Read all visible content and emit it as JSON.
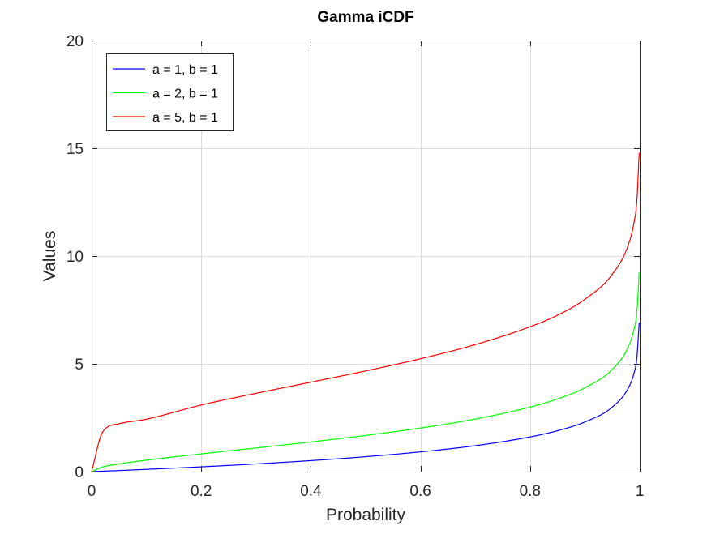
{
  "chart_data": {
    "type": "line",
    "title": "Gamma iCDF",
    "xlabel": "Probability",
    "ylabel": "Values",
    "xlim": [
      0,
      1
    ],
    "ylim": [
      0,
      20
    ],
    "x_ticks": [
      "0",
      "0.2",
      "0.4",
      "0.6",
      "0.8",
      "1"
    ],
    "y_ticks": [
      "0",
      "5",
      "10",
      "15",
      "20"
    ],
    "grid": true,
    "legend_position": "top-left",
    "x": [
      0.0,
      0.02,
      0.05,
      0.1,
      0.2,
      0.3,
      0.4,
      0.5,
      0.6,
      0.7,
      0.8,
      0.85,
      0.9,
      0.95,
      0.98,
      0.99,
      0.995,
      0.999
    ],
    "series": [
      {
        "name": "a = 1, b = 1",
        "color": "#0000ff",
        "values": [
          0.0,
          0.02,
          0.05,
          0.105,
          0.223,
          0.357,
          0.511,
          0.693,
          0.916,
          1.204,
          1.609,
          1.897,
          2.303,
          2.996,
          3.912,
          4.605,
          5.298,
          6.908
        ]
      },
      {
        "name": "a = 2, b = 1",
        "color": "#00ff00",
        "values": [
          0.0,
          0.215,
          0.355,
          0.532,
          0.824,
          1.097,
          1.376,
          1.678,
          2.022,
          2.439,
          2.994,
          3.372,
          3.89,
          4.744,
          5.834,
          6.638,
          7.43,
          9.233
        ]
      },
      {
        "name": "a = 5, b = 1",
        "color": "#ff0000",
        "values": [
          0.0,
          1.829,
          2.222,
          2.433,
          3.09,
          3.634,
          4.148,
          4.671,
          5.237,
          5.891,
          6.721,
          7.255,
          7.994,
          9.154,
          10.573,
          11.605,
          12.594,
          14.794
        ]
      }
    ]
  }
}
